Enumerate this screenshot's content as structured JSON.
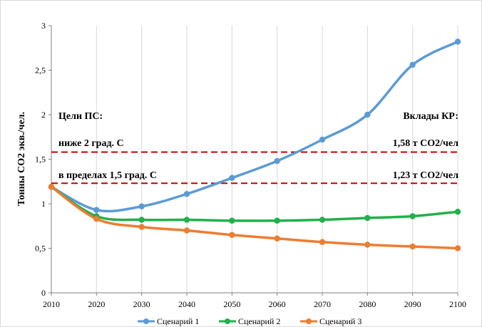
{
  "chart_data": {
    "type": "line",
    "ylabel": "Тонны  CO2 экв./чел.",
    "xlabel": "",
    "title": "",
    "x": [
      2010,
      2020,
      2030,
      2040,
      2050,
      2060,
      2070,
      2080,
      2090,
      2100
    ],
    "xlim": [
      2010,
      2100
    ],
    "ylim": [
      0,
      3
    ],
    "yticks": [
      "0",
      "0,5",
      "1",
      "1,5",
      "2",
      "2,5",
      "3"
    ],
    "ytick_values": [
      0,
      0.5,
      1,
      1.5,
      2,
      2.5,
      3
    ],
    "xticks": [
      "2010",
      "2020",
      "2030",
      "2040",
      "2050",
      "2060",
      "2070",
      "2080",
      "2090",
      "2100"
    ],
    "grid": "vertical",
    "legend_position": "bottom",
    "series": [
      {
        "name": "Сценарий 1",
        "color": "#5b9bd5",
        "values": [
          1.19,
          0.93,
          0.97,
          1.11,
          1.29,
          1.48,
          1.72,
          2.0,
          2.56,
          2.82
        ]
      },
      {
        "name": "Сценарий 2",
        "color": "#21b04b",
        "values": [
          1.19,
          0.86,
          0.82,
          0.82,
          0.81,
          0.81,
          0.82,
          0.84,
          0.86,
          0.91
        ]
      },
      {
        "name": "Сценарий 3",
        "color": "#ed7d31",
        "values": [
          1.19,
          0.83,
          0.74,
          0.7,
          0.65,
          0.61,
          0.57,
          0.54,
          0.52,
          0.5
        ]
      }
    ],
    "reference_lines": [
      {
        "y": 1.58,
        "color": "#c00000"
      },
      {
        "y": 1.23,
        "color": "#c00000"
      }
    ],
    "annotations": {
      "left_title": "Цели ПС:",
      "left_line1": "ниже 2 град. С",
      "left_line2": "в пределах 1,5 град. С",
      "right_title": "Вклады КР:",
      "right_line1": "1,58 т CO2/чел",
      "right_line2": "1,23 т CO2/чел"
    }
  }
}
